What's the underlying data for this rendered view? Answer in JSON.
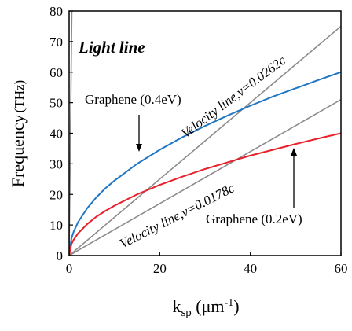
{
  "chart_data": {
    "type": "line",
    "title": "",
    "xlabel": {
      "main": "k",
      "sub": "sp",
      "unit_open": " (μm",
      "sup": "-1",
      "unit_close": ")"
    },
    "ylabel": {
      "main": "Frequency",
      "unit": "(THz)"
    },
    "xlim": [
      0,
      60
    ],
    "ylim": [
      0,
      80
    ],
    "xticks": [
      0,
      20,
      40,
      60
    ],
    "yticks": [
      0,
      10,
      20,
      30,
      40,
      50,
      60,
      70,
      80
    ],
    "grid": false,
    "series": [
      {
        "name": "Light line",
        "color": "#8c8c8c",
        "x": [
          0,
          0.3,
          0.6
        ],
        "y": [
          0,
          40,
          80
        ]
      },
      {
        "name": "Velocity line,v=0.0262c",
        "color": "#8c8c8c",
        "x": [
          0,
          10,
          20,
          30,
          40,
          50,
          60
        ],
        "y": [
          0,
          12.5,
          25,
          37.5,
          50,
          62.5,
          75
        ]
      },
      {
        "name": "Velocity line,v=0.0178c",
        "color": "#8c8c8c",
        "x": [
          0,
          10,
          20,
          30,
          40,
          50,
          60
        ],
        "y": [
          0,
          8.5,
          17,
          25.5,
          34,
          42.5,
          51
        ]
      },
      {
        "name": "Graphene (0.4eV)",
        "color": "#1f77c4",
        "x": [
          0,
          0.5,
          1,
          2,
          4,
          6,
          8,
          10,
          15,
          20,
          25,
          30,
          35,
          40,
          45,
          50,
          55,
          60
        ],
        "y": [
          0,
          5.5,
          7.8,
          11,
          15.5,
          19,
          22,
          24.5,
          30,
          34.6,
          38.7,
          42.4,
          45.8,
          49,
          52,
          54.7,
          57.4,
          60
        ]
      },
      {
        "name": "Graphene (0.2eV)",
        "color": "#e8202a",
        "x": [
          0,
          0.5,
          1,
          2,
          4,
          6,
          8,
          10,
          15,
          20,
          25,
          30,
          35,
          40,
          45,
          50,
          55,
          60
        ],
        "y": [
          0,
          3.7,
          5.2,
          7.3,
          10.3,
          12.7,
          14.6,
          16.3,
          20,
          23.1,
          25.8,
          28.3,
          30.5,
          32.7,
          34.6,
          36.5,
          38.3,
          40
        ]
      }
    ],
    "annotations": {
      "light_line": "Light line",
      "velocity_high": "Velocity line,v=0.0262c",
      "velocity_low": "Velocity line,v=0.0178c",
      "graphene_high": "Graphene (0.4eV)",
      "graphene_low": "Graphene (0.2eV)"
    }
  }
}
